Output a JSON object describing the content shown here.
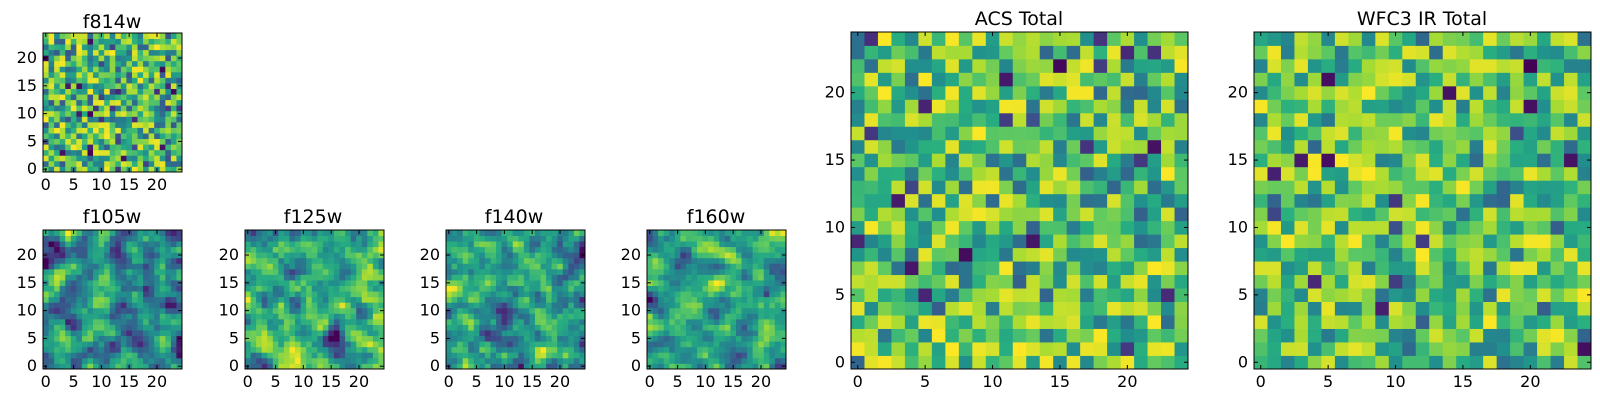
{
  "figure": {
    "colormap": "viridis",
    "grid_size": 25,
    "seed_note": "pseudo-random noise images, value range 0-1"
  },
  "chart_data": [
    {
      "id": "f814w",
      "type": "heatmap",
      "title": "f814w",
      "xlim": [
        0,
        24
      ],
      "ylim": [
        0,
        24
      ],
      "xticks": [
        0,
        5,
        10,
        15,
        20
      ],
      "yticks": [
        0,
        5,
        10,
        15,
        20
      ],
      "seed": 814,
      "smooth": 0,
      "min_floor": 0.25
    },
    {
      "id": "f105w",
      "type": "heatmap",
      "title": "f105w",
      "xlim": [
        0,
        24
      ],
      "ylim": [
        0,
        24
      ],
      "xticks": [
        0,
        5,
        10,
        15,
        20
      ],
      "yticks": [
        0,
        5,
        10,
        15,
        20
      ],
      "seed": 105,
      "smooth": 1,
      "min_floor": 0.2
    },
    {
      "id": "f125w",
      "type": "heatmap",
      "title": "f125w",
      "xlim": [
        0,
        24
      ],
      "ylim": [
        0,
        24
      ],
      "xticks": [
        0,
        5,
        10,
        15,
        20
      ],
      "yticks": [
        0,
        5,
        10,
        15,
        20
      ],
      "seed": 125,
      "smooth": 1,
      "min_floor": 0.25
    },
    {
      "id": "f140w",
      "type": "heatmap",
      "title": "f140w",
      "xlim": [
        0,
        24
      ],
      "ylim": [
        0,
        24
      ],
      "xticks": [
        0,
        5,
        10,
        15,
        20
      ],
      "yticks": [
        0,
        5,
        10,
        15,
        20
      ],
      "seed": 140,
      "smooth": 1,
      "min_floor": 0.22
    },
    {
      "id": "f160w",
      "type": "heatmap",
      "title": "f160w",
      "xlim": [
        0,
        24
      ],
      "ylim": [
        0,
        24
      ],
      "xticks": [
        0,
        5,
        10,
        15,
        20
      ],
      "yticks": [
        0,
        5,
        10,
        15,
        20
      ],
      "seed": 160,
      "smooth": 1,
      "min_floor": 0.25
    },
    {
      "id": "acs_total",
      "type": "heatmap",
      "title": "ACS Total",
      "xlim": [
        0,
        24
      ],
      "ylim": [
        0,
        24
      ],
      "xticks": [
        0,
        5,
        10,
        15,
        20
      ],
      "yticks": [
        0,
        5,
        10,
        15,
        20
      ],
      "seed": 2001,
      "smooth": 0,
      "min_floor": 0.3
    },
    {
      "id": "wfc3_ir_total",
      "type": "heatmap",
      "title": "WFC3 IR Total",
      "xlim": [
        0,
        24
      ],
      "ylim": [
        0,
        24
      ],
      "xticks": [
        0,
        5,
        10,
        15,
        20
      ],
      "yticks": [
        0,
        5,
        10,
        15,
        20
      ],
      "seed": 3002,
      "smooth": 0,
      "min_floor": 0.3
    }
  ]
}
